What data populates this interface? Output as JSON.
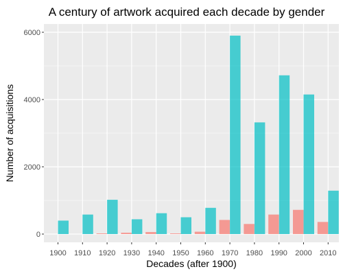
{
  "chart_data": {
    "type": "bar",
    "title": "A century of artwork acquired each decade by gender",
    "xlabel": "Decades (after 1900)",
    "ylabel": "Number of acquisitions",
    "categories": [
      "1900",
      "1910",
      "1920",
      "1930",
      "1940",
      "1950",
      "1960",
      "1970",
      "1980",
      "1990",
      "2000",
      "2010"
    ],
    "series": [
      {
        "color": "#f8766d",
        "values": [
          0,
          0,
          20,
          40,
          60,
          20,
          70,
          420,
          300,
          580,
          720,
          360
        ]
      },
      {
        "color": "#00bfc4",
        "values": [
          400,
          580,
          1020,
          440,
          620,
          500,
          780,
          5900,
          3320,
          4720,
          4150,
          1290
        ]
      }
    ],
    "ylim": [
      0,
      6000
    ],
    "yticks": [
      "0",
      "2000",
      "4000",
      "6000"
    ],
    "grid": true,
    "panel_background": "#ebebeb",
    "gridline_color": "#ffffff",
    "bar_opacity": 0.7
  }
}
